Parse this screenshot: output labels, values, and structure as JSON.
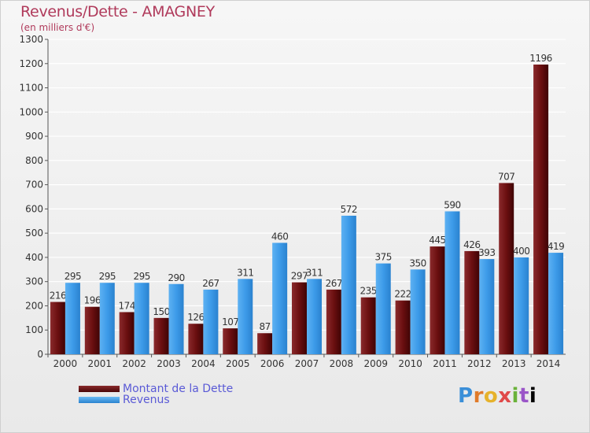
{
  "chart_data": {
    "type": "bar",
    "title": "Revenus/Dette - AMAGNEY",
    "subtitle": "(en milliers d'€)",
    "categories": [
      "2000",
      "2001",
      "2002",
      "2003",
      "2004",
      "2005",
      "2006",
      "2007",
      "2008",
      "2009",
      "2010",
      "2011",
      "2012",
      "2013",
      "2014"
    ],
    "series": [
      {
        "name": "Montant de la Dette",
        "color": "#6b0f10",
        "values": [
          216,
          196,
          174,
          150,
          126,
          107,
          87,
          297,
          267,
          235,
          222,
          445,
          426,
          707,
          1196
        ]
      },
      {
        "name": "Revenus",
        "color": "#3d9be9",
        "values": [
          295,
          295,
          295,
          290,
          267,
          311,
          460,
          311,
          572,
          375,
          350,
          590,
          393,
          400,
          419
        ]
      }
    ],
    "ylim": [
      0,
      1300
    ],
    "yticks": [
      0,
      100,
      200,
      300,
      400,
      500,
      600,
      700,
      800,
      900,
      1000,
      1100,
      1200,
      1300
    ],
    "grid": true,
    "legend": "bottom-left"
  },
  "logo_text": "Proxiti",
  "logo_letters": [
    "P",
    "r",
    "o",
    "x",
    "i",
    "t",
    "i"
  ],
  "colors": {
    "title": "#b03a5b",
    "legend_text": "#5a5ad6",
    "grid": "#ffffff",
    "axis": "#555555"
  }
}
